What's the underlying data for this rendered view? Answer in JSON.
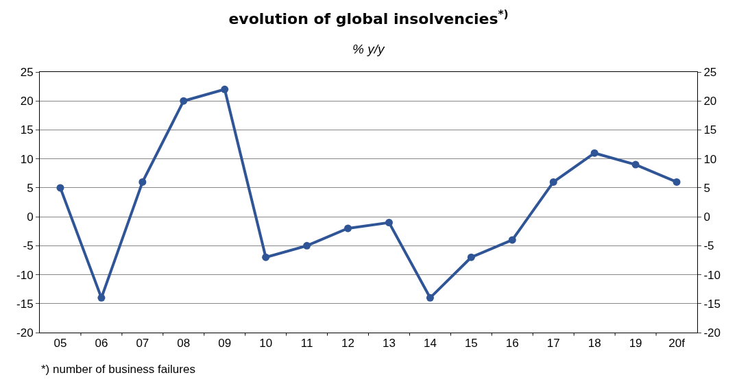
{
  "chart_data": {
    "type": "line",
    "title": "evolution of global insolvencies$^{*)}$",
    "subtitle": "% y/y",
    "categories": [
      "05",
      "06",
      "07",
      "08",
      "09",
      "10",
      "11",
      "12",
      "13",
      "14",
      "15",
      "16",
      "17",
      "18",
      "19",
      "20f"
    ],
    "series": [
      {
        "color": "#2f5597",
        "values": [
          5,
          -14,
          6,
          20,
          22,
          -7,
          -5,
          -2,
          -1,
          -14,
          -7,
          -4,
          6,
          11,
          9,
          6
        ]
      }
    ],
    "ylim": [
      -20,
      25
    ],
    "yticks": [
      -20,
      -15,
      -10,
      -5,
      0,
      5,
      10,
      15,
      20,
      25
    ],
    "y2lim": [
      -20,
      25
    ],
    "y2ticks": [
      -20,
      -15,
      -10,
      -5,
      0,
      5,
      10,
      15,
      20,
      25
    ],
    "grid": "y",
    "legend": false,
    "marker": "circle",
    "line_style": "solid",
    "annotations": [
      "*) number of business failures"
    ]
  }
}
